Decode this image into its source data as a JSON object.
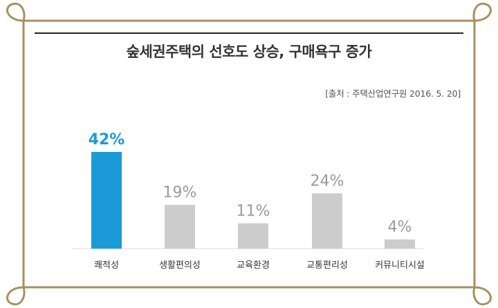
{
  "chart_data": {
    "type": "bar",
    "title": "숲세권주택의 선호도 상승, 구매욕구 증가",
    "source": "[출처 : 주택산업연구원 2016. 5. 20]",
    "categories": [
      "쾌적성",
      "생활편의성",
      "교육환경",
      "교통편리성",
      "커뮤니티시설"
    ],
    "values": [
      42,
      19,
      11,
      24,
      4
    ],
    "value_labels": [
      "42%",
      "19%",
      "11%",
      "24%",
      "4%"
    ],
    "unit": "%",
    "ylim": [
      0,
      42
    ],
    "grid": false,
    "legend": "none",
    "colors": {
      "highlight": "#1a9bd7",
      "default": "#cccccc",
      "highlight_label": "#1a9bd7",
      "default_label": "#9a9a9a",
      "frame": "#a88f5e",
      "rule": "#222222"
    },
    "highlight_index": 0
  }
}
